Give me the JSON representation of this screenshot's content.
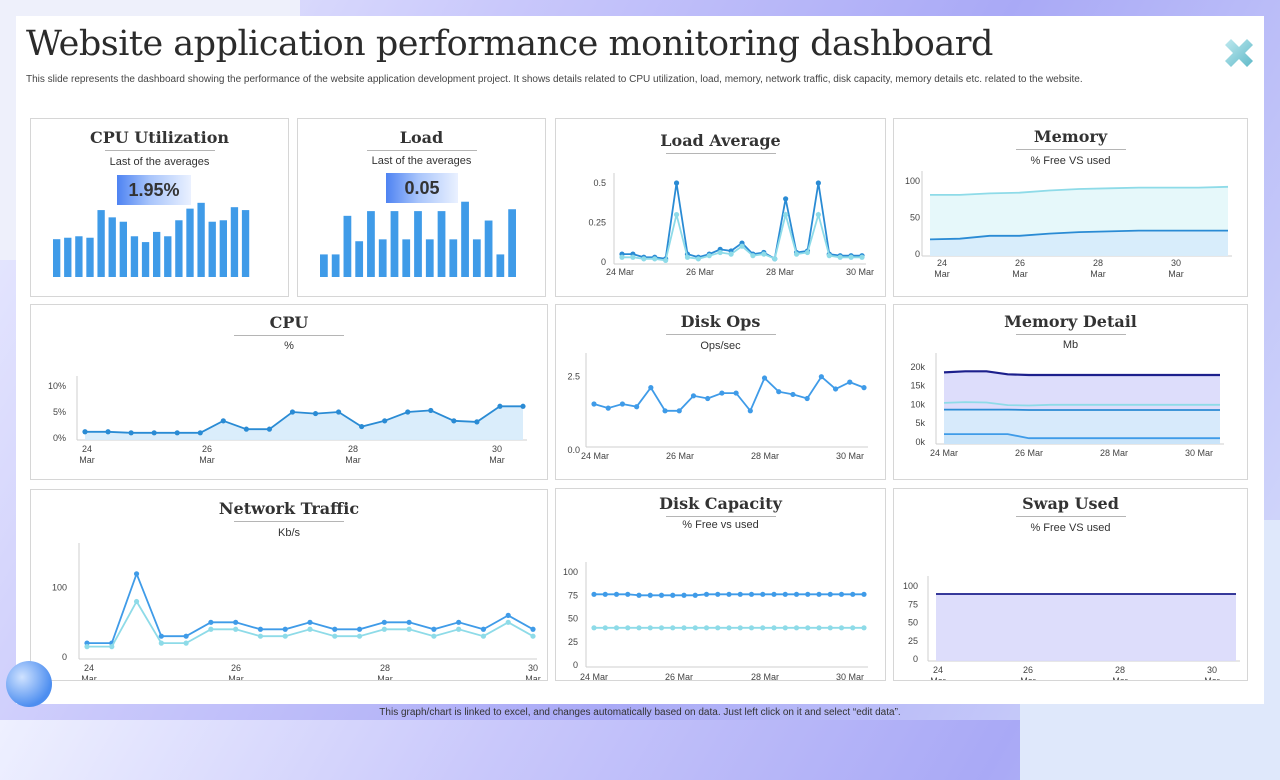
{
  "page": {
    "title": "Website application performance monitoring dashboard",
    "subtitle": "This slide represents the dashboard showing the performance of the website application development project. It shows details related to CPU  utilization,  load, memory,  network traffic, disk capacity, memory details etc. related to the website.",
    "footer": "This graph/chart is linked to excel, and changes automatically based on data. Just left click on it and select “edit data”.",
    "logo_icon": "close-x-logo-icon",
    "colors": {
      "bar": "#3f9be8",
      "line_dark": "#2a8bd4",
      "line_light": "#8edbe8",
      "navy": "#1c1f8c",
      "fill_light": "#d6ebfb",
      "fill_lavender": "#d9d9fb",
      "fill_mint": "#e3f7fa"
    }
  },
  "chart_data": [
    {
      "id": "cpu_util",
      "type": "bar",
      "title": "CPU Utilization",
      "subtitle": "Last of the averages",
      "kpi": "1.95%",
      "values": [
        5.2,
        5.4,
        5.6,
        5.4,
        9.2,
        8.2,
        7.6,
        5.6,
        4.8,
        6.2,
        5.6,
        7.8,
        9.4,
        10.2,
        7.6,
        7.8,
        9.6,
        9.2
      ],
      "ylim": [
        0,
        11
      ]
    },
    {
      "id": "load",
      "type": "bar",
      "title": "Load",
      "subtitle": "Last of the averages",
      "kpi": "0.05",
      "values": [
        2.4,
        2.4,
        6.5,
        3.8,
        7.0,
        4.0,
        7.0,
        4.0,
        7.0,
        4.0,
        7.0,
        4.0,
        8.0,
        4.0,
        6.0,
        2.4,
        7.2
      ],
      "ylim": [
        0,
        8.5
      ]
    },
    {
      "id": "load_avg",
      "type": "line",
      "title": "Load Average",
      "subtitle": "",
      "x_ticks": [
        "24 Mar",
        "26 Mar",
        "28 Mar",
        "30 Mar"
      ],
      "y_ticks": [
        "0",
        "0.25",
        "0.5"
      ],
      "ylim": [
        0,
        0.5
      ],
      "xlim": [
        0,
        1
      ],
      "series": [
        {
          "color": "#2a8bd4",
          "values": [
            0.05,
            0.05,
            0.03,
            0.03,
            0.02,
            0.5,
            0.05,
            0.03,
            0.05,
            0.08,
            0.07,
            0.12,
            0.05,
            0.06,
            0.02,
            0.4,
            0.06,
            0.07,
            0.5,
            0.05,
            0.04,
            0.04,
            0.04
          ]
        },
        {
          "color": "#8edbe8",
          "values": [
            0.03,
            0.03,
            0.02,
            0.02,
            0.01,
            0.3,
            0.03,
            0.02,
            0.04,
            0.06,
            0.05,
            0.1,
            0.04,
            0.05,
            0.02,
            0.3,
            0.05,
            0.06,
            0.3,
            0.04,
            0.03,
            0.03,
            0.03
          ]
        }
      ]
    },
    {
      "id": "memory",
      "type": "area",
      "title": "Memory",
      "subtitle": "% Free VS used",
      "x_ticks": [
        "24\nMar",
        "26\nMar",
        "28\nMar",
        "30\nMar"
      ],
      "y_ticks": [
        "0",
        "50",
        "100"
      ],
      "ylim": [
        0,
        100
      ],
      "series": [
        {
          "color": "#8edbe8",
          "fill": "#e3f7fa",
          "values": [
            81,
            81,
            83,
            84,
            87,
            89,
            90,
            91,
            91,
            91,
            92
          ]
        },
        {
          "color": "#2a8bd4",
          "fill": "#d6ebfb",
          "values": [
            20,
            21,
            25,
            25,
            28,
            30,
            31,
            32,
            32,
            32,
            32
          ]
        }
      ]
    },
    {
      "id": "cpu",
      "type": "area",
      "title": "CPU",
      "subtitle": "%",
      "x_ticks": [
        "24\nMar",
        "26\nMar",
        "28\nMar",
        "30\nMar"
      ],
      "y_ticks": [
        "0%",
        "5%",
        "10%"
      ],
      "ylim": [
        0,
        10
      ],
      "series": [
        {
          "color": "#2a8bd4",
          "fill": "#d6ebfb",
          "values": [
            1.2,
            1.2,
            1.0,
            1.0,
            1.0,
            1.0,
            3.3,
            1.7,
            1.7,
            5.0,
            4.7,
            5.0,
            2.2,
            3.3,
            5.0,
            5.3,
            3.3,
            3.1,
            6.1,
            6.1
          ]
        }
      ]
    },
    {
      "id": "disk_ops",
      "type": "line",
      "title": "Disk Ops",
      "subtitle": "Ops/sec",
      "x_ticks": [
        "24 Mar",
        "26 Mar",
        "28 Mar",
        "30 Mar"
      ],
      "y_ticks": [
        "0.0",
        "2.5"
      ],
      "ylim": [
        0,
        3.0
      ],
      "series": [
        {
          "color": "#3f9be8",
          "values": [
            1.5,
            1.35,
            1.5,
            1.4,
            2.1,
            1.25,
            1.25,
            1.8,
            1.7,
            1.9,
            1.9,
            1.25,
            2.45,
            1.95,
            1.85,
            1.7,
            2.5,
            2.05,
            2.3,
            2.1
          ]
        }
      ]
    },
    {
      "id": "memory_detail",
      "type": "area",
      "title": "Memory Detail",
      "subtitle": "Mb",
      "x_ticks": [
        "24 Mar",
        "26 Mar",
        "28 Mar",
        "30 Mar"
      ],
      "y_ticks": [
        "0k",
        "5k",
        "10k",
        "15k",
        "20k"
      ],
      "ylim": [
        0,
        21000
      ],
      "series": [
        {
          "color": "#1c1f8c",
          "fill": "#d9d9fb",
          "values": [
            18500,
            18800,
            18800,
            18000,
            17800,
            17800,
            17800,
            17800,
            17800,
            17800,
            17800,
            17800,
            17800,
            17800
          ]
        },
        {
          "color": "#8edbe8",
          "fill": "none",
          "values": [
            10400,
            10600,
            10500,
            9800,
            9700,
            9900,
            9900,
            9900,
            9900,
            9900,
            9900,
            9900,
            9900,
            9900
          ]
        },
        {
          "color": "#2a8bd4",
          "fill": "#d6ebfb",
          "values": [
            8600,
            8600,
            8600,
            8600,
            8500,
            8500,
            8500,
            8500,
            8500,
            8500,
            8500,
            8500,
            8500,
            8500
          ]
        },
        {
          "color": "#3f9be8",
          "fill": "#c9e3f8",
          "values": [
            2100,
            2100,
            2100,
            2100,
            1000,
            1000,
            1000,
            1000,
            1000,
            1000,
            1000,
            1000,
            1000,
            1000
          ]
        }
      ]
    },
    {
      "id": "network",
      "type": "line",
      "title": "Network Traffic",
      "subtitle": "Kb/s",
      "x_ticks": [
        "24\nMar",
        "26\nMar",
        "28\nMar",
        "30\nMar"
      ],
      "y_ticks": [
        "0",
        "100"
      ],
      "ylim": [
        0,
        150
      ],
      "series": [
        {
          "color": "#3f9be8",
          "values": [
            20,
            20,
            120,
            30,
            30,
            50,
            50,
            40,
            40,
            50,
            40,
            40,
            50,
            50,
            40,
            50,
            40,
            60,
            40
          ]
        },
        {
          "color": "#8edbe8",
          "values": [
            15,
            15,
            80,
            20,
            20,
            40,
            40,
            30,
            30,
            40,
            30,
            30,
            40,
            40,
            30,
            40,
            30,
            50,
            30
          ]
        }
      ]
    },
    {
      "id": "disk_capacity",
      "type": "line",
      "title": "Disk Capacity",
      "subtitle": "% Free vs used",
      "x_ticks": [
        "24 Mar",
        "26 Mar",
        "28 Mar",
        "30 Mar"
      ],
      "y_ticks": [
        "0",
        "25",
        "50",
        "75",
        "100"
      ],
      "ylim": [
        0,
        100
      ],
      "series": [
        {
          "color": "#3f9be8",
          "values": [
            76,
            76,
            76,
            76,
            75,
            75,
            75,
            75,
            75,
            75,
            76,
            76,
            76,
            76,
            76,
            76,
            76,
            76,
            76,
            76,
            76,
            76,
            76,
            76,
            76
          ]
        },
        {
          "color": "#8edbe8",
          "values": [
            40,
            40,
            40,
            40,
            40,
            40,
            40,
            40,
            40,
            40,
            40,
            40,
            40,
            40,
            40,
            40,
            40,
            40,
            40,
            40,
            40,
            40,
            40,
            40,
            40
          ]
        }
      ]
    },
    {
      "id": "swap",
      "type": "area",
      "title": "Swap Used",
      "subtitle": "% Free VS used",
      "x_ticks": [
        "24\nMar",
        "26\nMar",
        "28\nMar",
        "30\nMar"
      ],
      "y_ticks": [
        "0",
        "25",
        "50",
        "75",
        "100"
      ],
      "ylim": [
        0,
        100
      ],
      "series": [
        {
          "color": "#1c1f8c",
          "fill": "#d9d9fb",
          "values": [
            89,
            89,
            89,
            89,
            89,
            89,
            89,
            89,
            89,
            89,
            89,
            89
          ]
        }
      ]
    }
  ]
}
